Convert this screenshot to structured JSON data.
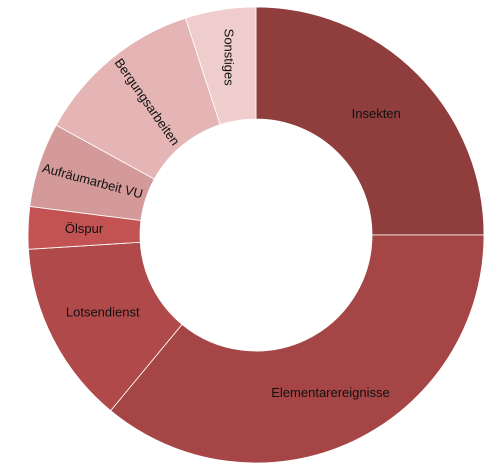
{
  "chart_data": {
    "type": "donut",
    "categories": [
      "Insekten",
      "Elementarereignisse",
      "Lotsendienst",
      "Ölspur",
      "Aufräumarbeit VU",
      "Bergungsarbeiten",
      "Sonstiges"
    ],
    "values": [
      25,
      36,
      13,
      3,
      6,
      12,
      5
    ],
    "colors": [
      "#8f3d3d",
      "#a64545",
      "#b04a4a",
      "#c35252",
      "#d49a9a",
      "#e5b5b5",
      "#efcdcd"
    ]
  }
}
